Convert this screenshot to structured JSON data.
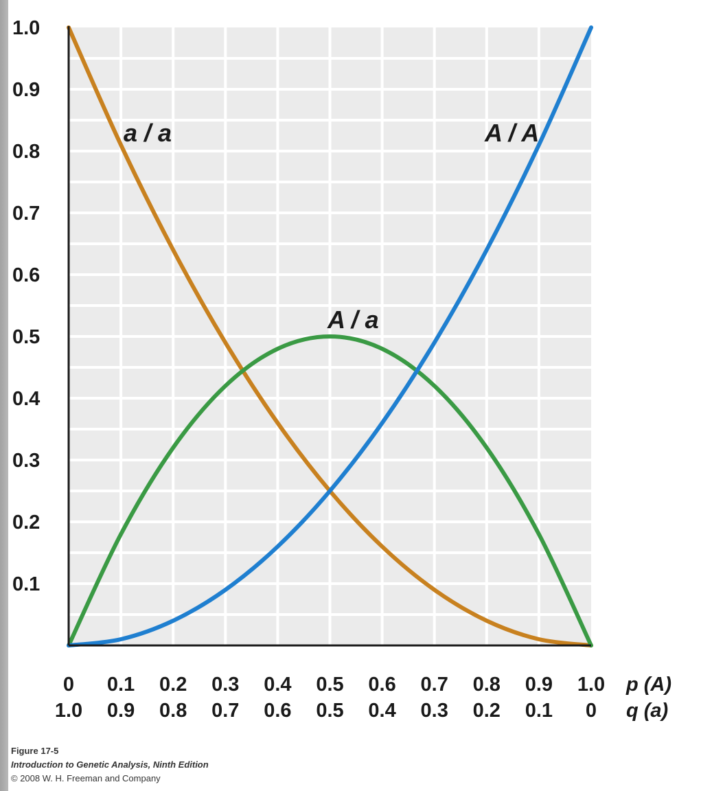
{
  "caption": {
    "figure_number": "Figure 17-5",
    "book_title": "Introduction to Genetic Analysis, Ninth Edition",
    "copyright": "© 2008 W. H. Freeman and Company"
  },
  "colors": {
    "plot_background": "#ebebeb",
    "grid": "#ffffff",
    "axis": "#1a1a1a",
    "aa": "#c8811f",
    "Aa": "#3a9a44",
    "AA": "#1f7fd0"
  },
  "chart_data": {
    "type": "line",
    "xlim": [
      0,
      1
    ],
    "ylim": [
      0,
      1
    ],
    "grid": true,
    "y_ticks": [
      "1.0",
      "0.9",
      "0.8",
      "0.7",
      "0.6",
      "0.5",
      "0.4",
      "0.3",
      "0.2",
      "0.1"
    ],
    "x_ticks_p": [
      "0",
      "0.1",
      "0.2",
      "0.3",
      "0.4",
      "0.5",
      "0.6",
      "0.7",
      "0.8",
      "0.9",
      "1.0"
    ],
    "x_ticks_q": [
      "1.0",
      "0.9",
      "0.8",
      "0.7",
      "0.6",
      "0.5",
      "0.4",
      "0.3",
      "0.2",
      "0.1",
      "0"
    ],
    "x_axis_label_p": "p (A)",
    "x_axis_label_q": "q (a)",
    "x": [
      0,
      0.1,
      0.2,
      0.3,
      0.4,
      0.5,
      0.6,
      0.7,
      0.8,
      0.9,
      1.0
    ],
    "series": [
      {
        "name": "a / a",
        "color_key": "aa",
        "values": [
          1.0,
          0.81,
          0.64,
          0.49,
          0.36,
          0.25,
          0.16,
          0.09,
          0.04,
          0.01,
          0.0
        ]
      },
      {
        "name": "A / a",
        "color_key": "Aa",
        "values": [
          0.0,
          0.18,
          0.32,
          0.42,
          0.48,
          0.5,
          0.48,
          0.42,
          0.32,
          0.18,
          0.0
        ]
      },
      {
        "name": "A / A",
        "color_key": "AA",
        "values": [
          0.0,
          0.01,
          0.04,
          0.09,
          0.16,
          0.25,
          0.36,
          0.49,
          0.64,
          0.81,
          1.0
        ]
      }
    ]
  }
}
